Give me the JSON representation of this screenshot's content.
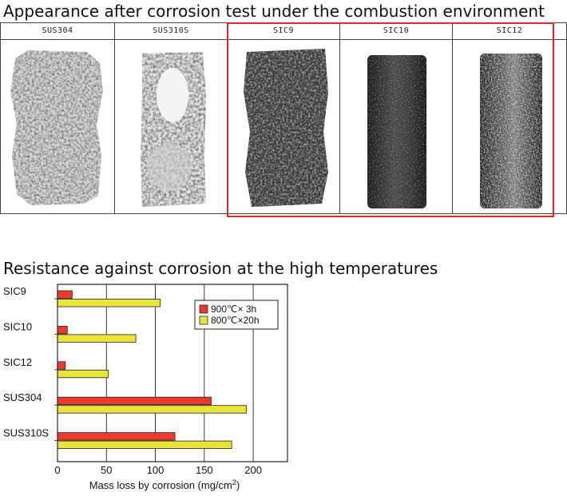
{
  "header": {
    "photo_title": "Appearance after corrosion test under the combustion environment",
    "chart_title": "Resistance against corrosion at the high temperatures"
  },
  "photos": [
    {
      "label": "SUS304",
      "style": "heavily-corroded",
      "highlighted": false
    },
    {
      "label": "SUS310S",
      "style": "corroded-light",
      "highlighted": false
    },
    {
      "label": "SIC9",
      "style": "heavily-corroded",
      "highlighted": true
    },
    {
      "label": "SIC10",
      "style": "smooth-dark",
      "highlighted": true
    },
    {
      "label": "SIC12",
      "style": "smooth-speckled",
      "highlighted": true
    }
  ],
  "colors": {
    "highlight": "#e8262a",
    "series_900": "#ee3a2e",
    "series_800": "#e9e43a"
  },
  "chart_data": {
    "type": "bar",
    "orientation": "horizontal",
    "categories": [
      "SIC9",
      "SIC10",
      "SIC12",
      "SUS304",
      "SUS310S"
    ],
    "series": [
      {
        "name": "900℃× 3h",
        "values": [
          15,
          10,
          8,
          157,
          120
        ]
      },
      {
        "name": "800℃×20h",
        "values": [
          105,
          80,
          52,
          193,
          178
        ]
      }
    ],
    "xlabel": "Mass loss by corrosion (mg/cm",
    "xlabel_sup": "2",
    "xlabel_end": ")",
    "ylabel": "",
    "xlim": [
      0,
      235
    ],
    "xticks": [
      0,
      50,
      100,
      150,
      200
    ],
    "grid": true,
    "legend_position": "top-right"
  }
}
